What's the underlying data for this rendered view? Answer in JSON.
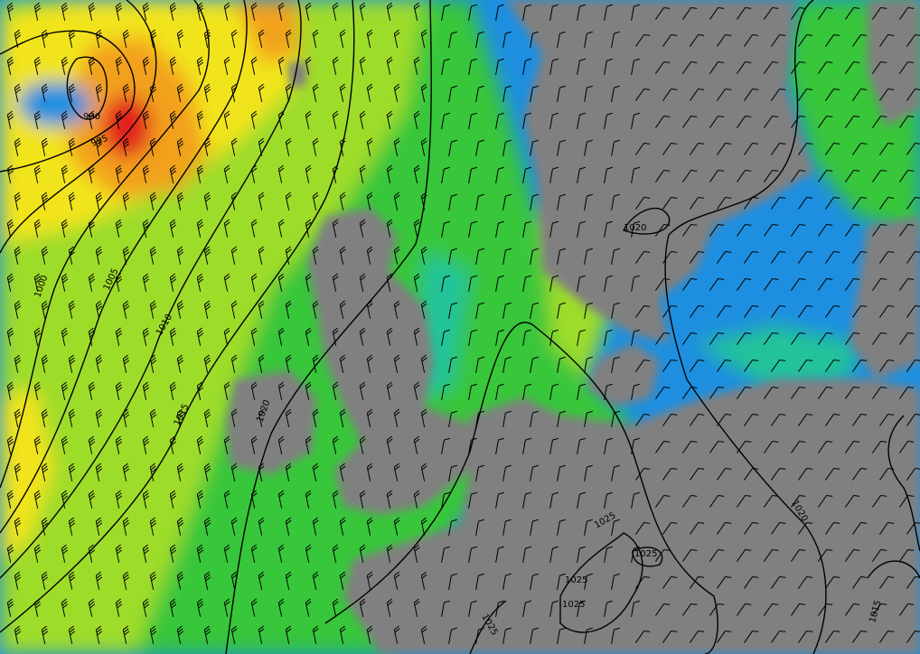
{
  "map": {
    "isobar_labels": [
      {
        "id": "l990",
        "text": "990"
      },
      {
        "id": "l995",
        "text": "995"
      },
      {
        "id": "l1000",
        "text": "1000"
      },
      {
        "id": "l1005",
        "text": "1005"
      },
      {
        "id": "l1010",
        "text": "1010"
      },
      {
        "id": "l1015",
        "text": "1015"
      },
      {
        "id": "l1020w",
        "text": "1020"
      },
      {
        "id": "l1020n",
        "text": "1020"
      },
      {
        "id": "l1020e",
        "text": "1020"
      },
      {
        "id": "l1025a",
        "text": "1025"
      },
      {
        "id": "l1025b",
        "text": "1025"
      },
      {
        "id": "l1025c",
        "text": "1025"
      },
      {
        "id": "l1025d",
        "text": "1025"
      },
      {
        "id": "l1025e",
        "text": "1025"
      },
      {
        "id": "l1015se",
        "text": "1015"
      }
    ],
    "colors": {
      "land": "#808080",
      "calm_blue": "#1e8fe0",
      "light_blue": "#29b6e8",
      "teal": "#21c39a",
      "green": "#38c63a",
      "yellow_green": "#9edc2c",
      "yellow": "#f2e41a",
      "orange": "#f2a11e",
      "red": "#e2231a",
      "isobar": "#000000"
    }
  }
}
